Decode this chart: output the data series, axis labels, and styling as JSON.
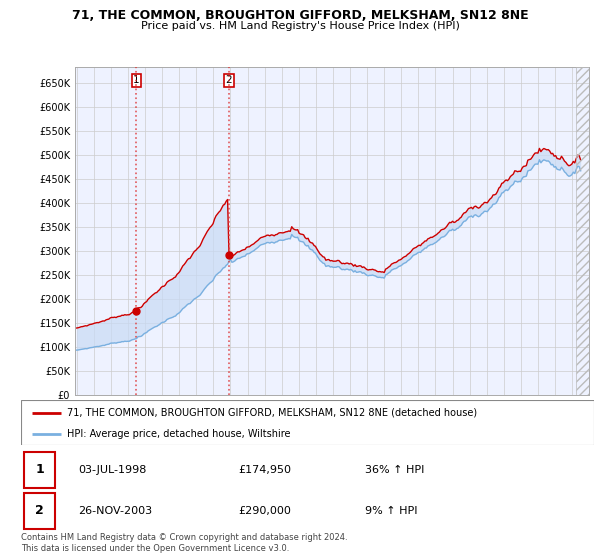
{
  "title_line1": "71, THE COMMON, BROUGHTON GIFFORD, MELKSHAM, SN12 8NE",
  "title_line2": "Price paid vs. HM Land Registry's House Price Index (HPI)",
  "ylim": [
    0,
    682000
  ],
  "yticks": [
    0,
    50000,
    100000,
    150000,
    200000,
    250000,
    300000,
    350000,
    400000,
    450000,
    500000,
    550000,
    600000,
    650000
  ],
  "ytick_labels": [
    "£0",
    "£50K",
    "£100K",
    "£150K",
    "£200K",
    "£250K",
    "£300K",
    "£350K",
    "£400K",
    "£450K",
    "£500K",
    "£550K",
    "£600K",
    "£650K"
  ],
  "grid_color": "#cccccc",
  "background_color": "#eef2ff",
  "hpi_color": "#7ab0e0",
  "hpi_fill_color": "#c8daf5",
  "price_color": "#cc0000",
  "marker_color": "#cc0000",
  "transaction1_x": 1998.5,
  "transaction1_y": 174950,
  "transaction2_x": 2003.9,
  "transaction2_y": 290000,
  "legend_line1": "71, THE COMMON, BROUGHTON GIFFORD, MELKSHAM, SN12 8NE (detached house)",
  "legend_line2": "HPI: Average price, detached house, Wiltshire",
  "footnote": "Contains HM Land Registry data © Crown copyright and database right 2024.\nThis data is licensed under the Open Government Licence v3.0.",
  "t1_date": "03-JUL-1998",
  "t1_price": "£174,950",
  "t1_hpi": "36% ↑ HPI",
  "t2_date": "26-NOV-2003",
  "t2_price": "£290,000",
  "t2_hpi": "9% ↑ HPI",
  "xlim_start": 1995.0,
  "xlim_end": 2025.0,
  "hatch_start": 2024.25
}
